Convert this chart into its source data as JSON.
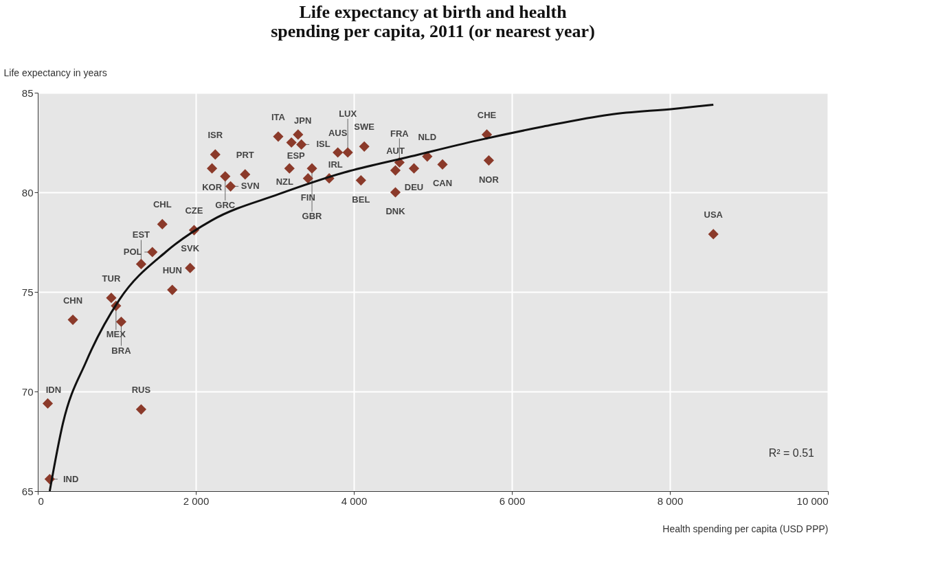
{
  "chart_data": {
    "type": "scatter",
    "title": "Life expectancy at birth and health spending per capita, 2011 (or nearest year)",
    "xlabel": "Health spending per capita (USD PPP)",
    "ylabel": "Life expectancy in years",
    "xlim": [
      0,
      10000
    ],
    "ylim": [
      65,
      85
    ],
    "xticks": [
      0,
      {
        "value": 2000,
        "label": "2 000"
      },
      {
        "value": 4000,
        "label": "4 000"
      },
      {
        "value": 6000,
        "label": "6 000"
      },
      {
        "value": 8000,
        "label": "8 000"
      },
      {
        "value": 10000,
        "label": "10 000"
      }
    ],
    "yticks": [
      65,
      70,
      75,
      80,
      85
    ],
    "grid": true,
    "marker": "diamond",
    "series": [
      {
        "type": "scatter",
        "color": "#8b3a2a",
        "x": [
          151,
          126,
          444,
          930,
          990,
          1056,
          1308,
          1450,
          1576,
          1978,
          1928,
          1702,
          1308,
          2246,
          2205,
          2372,
          2440,
          2624,
          3043,
          3210,
          3294,
          3336,
          3185,
          3420,
          3470,
          3688,
          3797,
          3923,
          4132,
          4090,
          4526,
          4577,
          4761,
          4526,
          5122,
          4929,
          5683,
          5708,
          8550
        ],
        "values": [
          65.6,
          69.4,
          73.6,
          74.7,
          74.3,
          73.5,
          76.4,
          77.0,
          78.4,
          78.1,
          76.2,
          75.1,
          69.1,
          81.9,
          81.2,
          80.8,
          80.3,
          80.9,
          82.8,
          82.5,
          82.9,
          82.4,
          81.2,
          80.7,
          81.2,
          80.7,
          82.0,
          82.0,
          82.3,
          80.6,
          81.1,
          81.5,
          81.2,
          80.0,
          81.4,
          81.8,
          82.9,
          81.6,
          77.9
        ]
      },
      {
        "type": "line",
        "color": "#111111",
        "line_style": "solid",
        "marker": "none",
        "x": [
          151,
          318,
          612,
          1031,
          1618,
          2205,
          3043,
          3881,
          4719,
          5557,
          6396,
          7234,
          8072,
          8550
        ],
        "values": [
          65.0,
          68.4,
          71.5,
          74.6,
          77.0,
          78.6,
          79.9,
          81.0,
          81.8,
          82.6,
          83.3,
          83.9,
          84.2,
          84.4
        ]
      }
    ],
    "annotations": [
      {
        "text": "IND",
        "x": 151,
        "y": 65.6
      },
      {
        "text": "IDN",
        "x": 126,
        "y": 69.4
      },
      {
        "text": "CHN",
        "x": 444,
        "y": 73.6
      },
      {
        "text": "TUR",
        "x": 930,
        "y": 74.7
      },
      {
        "text": "MEX",
        "x": 990,
        "y": 74.3
      },
      {
        "text": "BRA",
        "x": 1056,
        "y": 73.5
      },
      {
        "text": "EST",
        "x": 1308,
        "y": 76.4
      },
      {
        "text": "POL",
        "x": 1450,
        "y": 77.0
      },
      {
        "text": "CHL",
        "x": 1576,
        "y": 78.4
      },
      {
        "text": "CZE",
        "x": 1978,
        "y": 78.1
      },
      {
        "text": "SVK",
        "x": 1928,
        "y": 76.2
      },
      {
        "text": "HUN",
        "x": 1702,
        "y": 75.1
      },
      {
        "text": "RUS",
        "x": 1308,
        "y": 69.1
      },
      {
        "text": "ISR",
        "x": 2246,
        "y": 81.9
      },
      {
        "text": "KOR",
        "x": 2205,
        "y": 81.2
      },
      {
        "text": "GRC",
        "x": 2372,
        "y": 80.8
      },
      {
        "text": "SVN",
        "x": 2440,
        "y": 80.3
      },
      {
        "text": "PRT",
        "x": 2624,
        "y": 80.9
      },
      {
        "text": "ITA",
        "x": 3043,
        "y": 82.8
      },
      {
        "text": "ESP",
        "x": 3210,
        "y": 82.5
      },
      {
        "text": "JPN",
        "x": 3294,
        "y": 82.9
      },
      {
        "text": "ISL",
        "x": 3336,
        "y": 82.4
      },
      {
        "text": "NZL",
        "x": 3185,
        "y": 81.2
      },
      {
        "text": "FIN",
        "x": 3420,
        "y": 80.7
      },
      {
        "text": "GBR",
        "x": 3470,
        "y": 81.2
      },
      {
        "text": "IRL",
        "x": 3688,
        "y": 80.7
      },
      {
        "text": "AUS",
        "x": 3797,
        "y": 82.0
      },
      {
        "text": "LUX",
        "x": 3923,
        "y": 82.0
      },
      {
        "text": "SWE",
        "x": 4132,
        "y": 82.3
      },
      {
        "text": "BEL",
        "x": 4090,
        "y": 80.6
      },
      {
        "text": "AUT",
        "x": 4526,
        "y": 81.1
      },
      {
        "text": "FRA",
        "x": 4577,
        "y": 81.5
      },
      {
        "text": "DEU",
        "x": 4761,
        "y": 81.2
      },
      {
        "text": "DNK",
        "x": 4526,
        "y": 80.0
      },
      {
        "text": "CAN",
        "x": 5122,
        "y": 81.4
      },
      {
        "text": "NLD",
        "x": 4929,
        "y": 81.8
      },
      {
        "text": "CHE",
        "x": 5683,
        "y": 82.9
      },
      {
        "text": "NOR",
        "x": 5708,
        "y": 81.6
      },
      {
        "text": "USA",
        "x": 8550,
        "y": 77.9
      },
      "R² = 0.51"
    ]
  }
}
